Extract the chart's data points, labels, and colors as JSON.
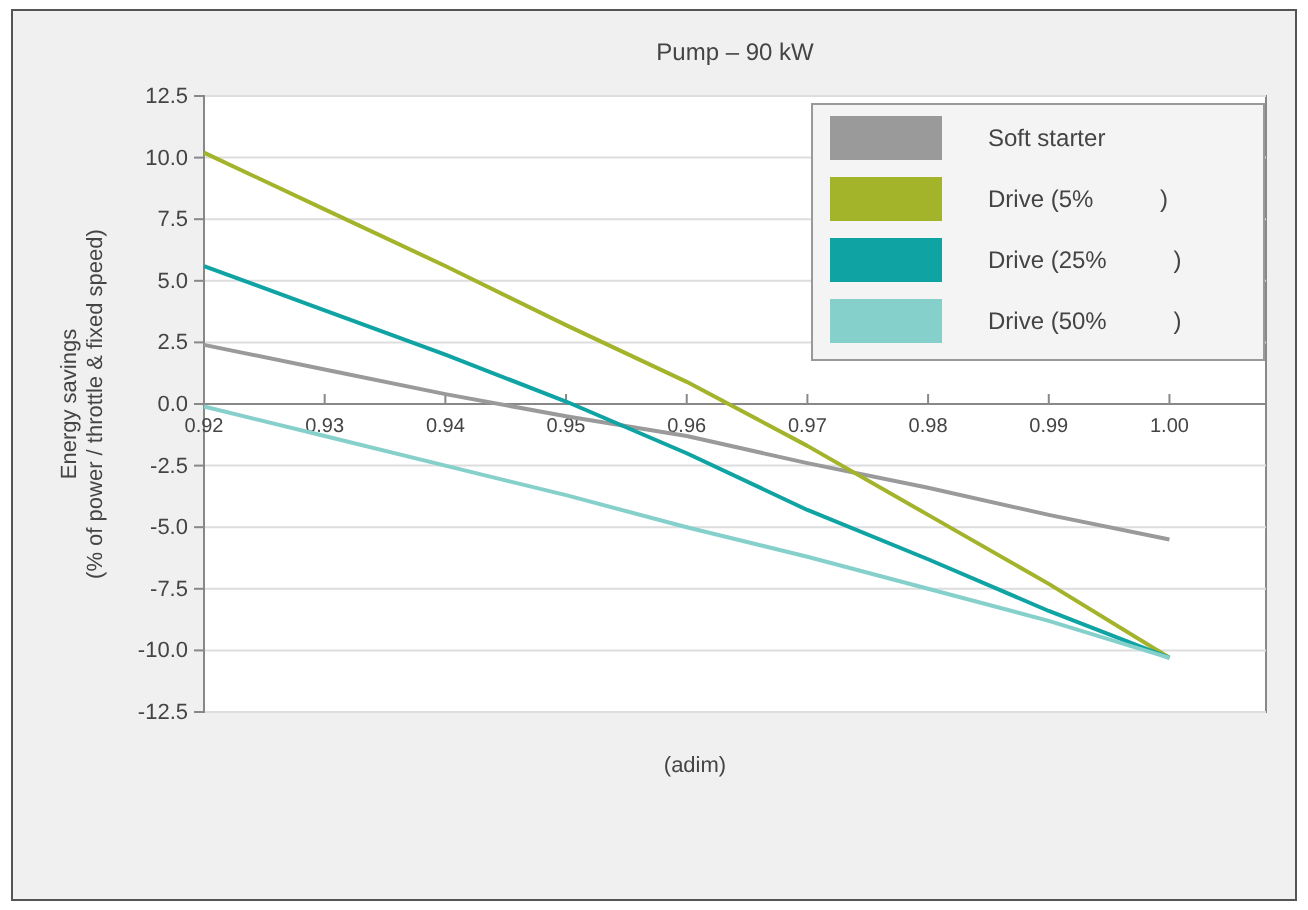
{
  "chart_data": {
    "type": "line",
    "title": "Pump – 90 kW",
    "xlabel": "(adim)",
    "ylabel": "Energy savings\n(% of power / throttle & fixed speed)",
    "x": [
      0.92,
      0.93,
      0.94,
      0.95,
      0.96,
      0.97,
      0.98,
      0.99,
      1.0
    ],
    "series": [
      {
        "name": "Soft starter",
        "color": "#9a9a9a",
        "values": [
          2.4,
          1.4,
          0.4,
          -0.5,
          -1.3,
          -2.4,
          -3.4,
          -4.5,
          -5.5
        ]
      },
      {
        "name": "Drive (5%          )",
        "color": "#a3b32a",
        "values": [
          10.2,
          7.9,
          5.6,
          3.2,
          0.9,
          -1.7,
          -4.5,
          -7.3,
          -10.3
        ]
      },
      {
        "name": "Drive (25%          )",
        "color": "#0fa3a3",
        "values": [
          5.6,
          3.8,
          2.0,
          0.1,
          -2.0,
          -4.3,
          -6.3,
          -8.4,
          -10.3
        ]
      },
      {
        "name": "Drive (50%          )",
        "color": "#86d0cc",
        "values": [
          -0.1,
          -1.3,
          -2.5,
          -3.7,
          -5.0,
          -6.2,
          -7.5,
          -8.8,
          -10.3
        ]
      }
    ],
    "xlim": [
      0.92,
      1.008
    ],
    "xticks": [
      0.92,
      0.93,
      0.94,
      0.95,
      0.96,
      0.97,
      0.98,
      0.99,
      {
        "value": 1.0,
        "label": "1.00"
      }
    ],
    "ylim": [
      -12.5,
      12.5
    ],
    "yticks": [
      -12.5,
      {
        "value": -10,
        "label": "-10.0"
      },
      -7.5,
      {
        "value": -5,
        "label": "-5.0"
      },
      -2.5,
      {
        "value": 0,
        "label": "0.0"
      },
      2.5,
      {
        "value": 5,
        "label": "5.0"
      },
      7.5,
      {
        "value": 10,
        "label": "10.0"
      },
      12.5
    ],
    "grid": "y",
    "legend": "top right",
    "marker": "none",
    "line_style": "solid"
  }
}
